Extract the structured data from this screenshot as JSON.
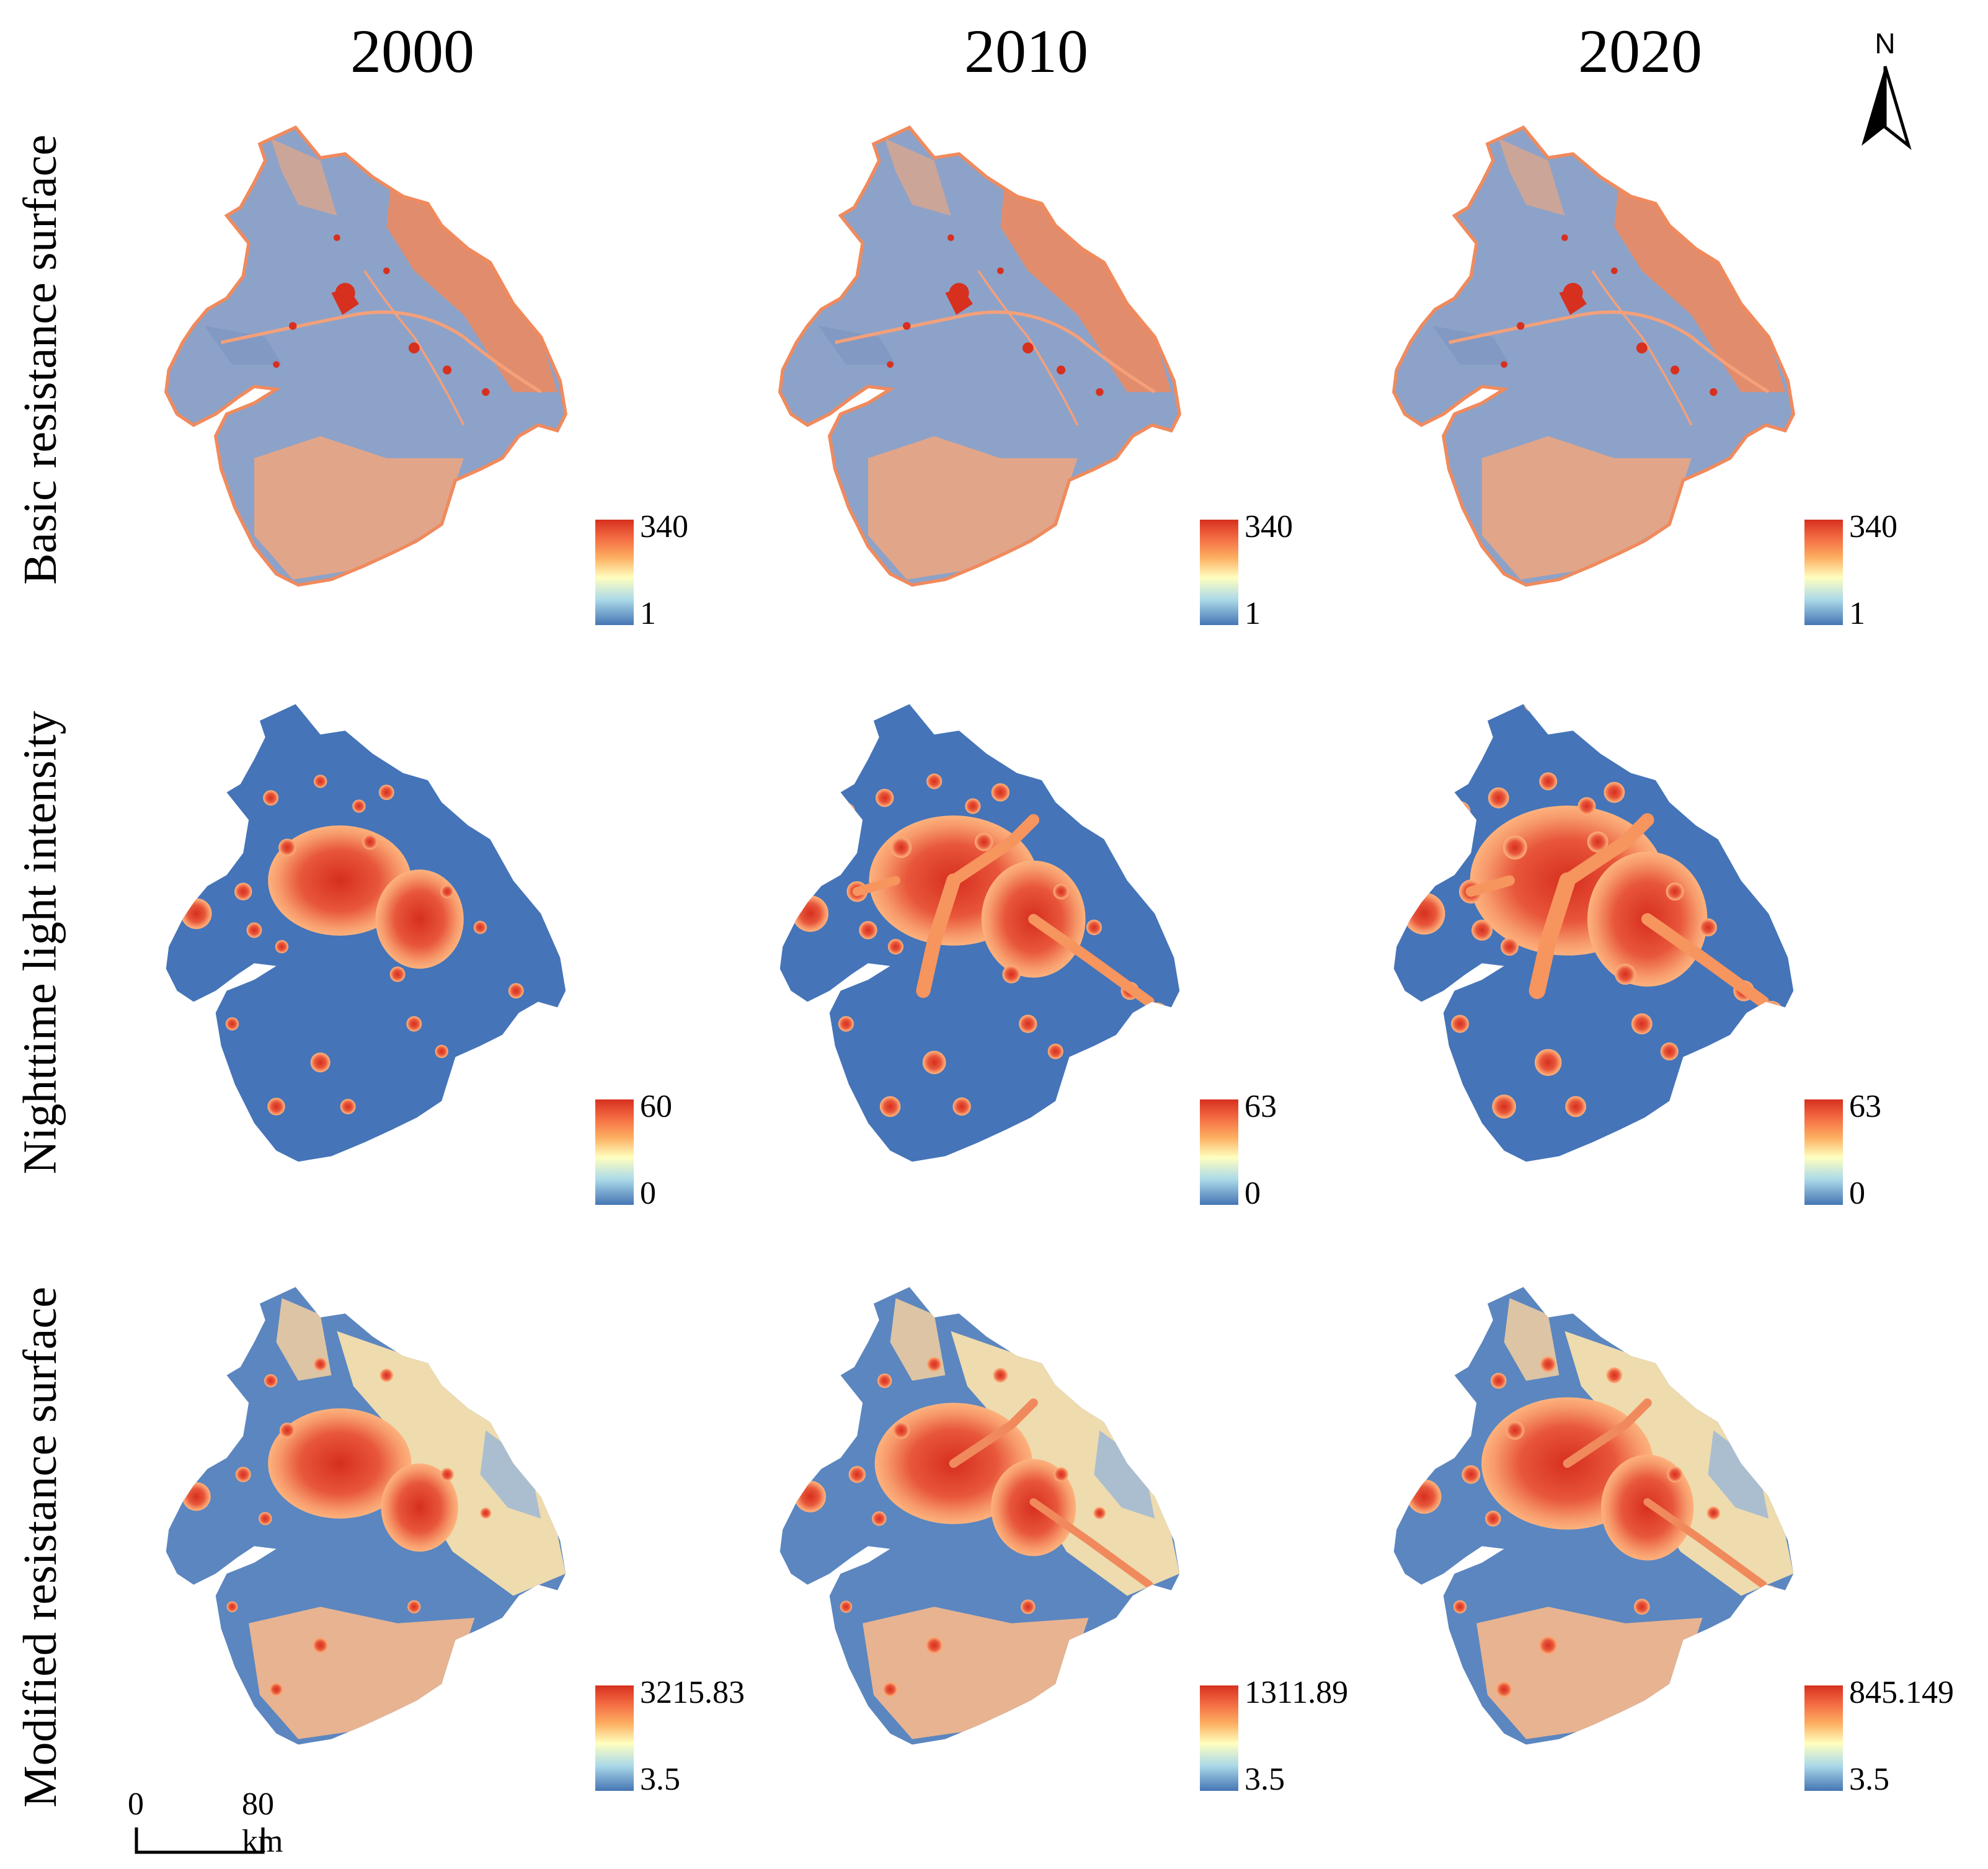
{
  "columns": [
    "2000",
    "2010",
    "2020"
  ],
  "rows": [
    {
      "title": "Basic resistance surface",
      "legend": [
        {
          "max": "340",
          "min": "1"
        },
        {
          "max": "340",
          "min": "1"
        },
        {
          "max": "340",
          "min": "1"
        }
      ]
    },
    {
      "title": "Nighttime light intensity",
      "legend": [
        {
          "max": "60",
          "min": "0"
        },
        {
          "max": "63",
          "min": "0"
        },
        {
          "max": "63",
          "min": "0"
        }
      ]
    },
    {
      "title": "Modified resistance surface",
      "legend": [
        {
          "max": "3215.83",
          "min": "3.5"
        },
        {
          "max": "1311.89",
          "min": "3.5"
        },
        {
          "max": "845.149",
          "min": "3.5"
        }
      ]
    }
  ],
  "north_arrow": {
    "label": "N"
  },
  "scale_bar": {
    "start": "0",
    "end": "80 km"
  },
  "colors": {
    "high": "#d7301f",
    "mid": "#ffffbf",
    "low": "#4575b4",
    "peach": "#f6a67a"
  }
}
